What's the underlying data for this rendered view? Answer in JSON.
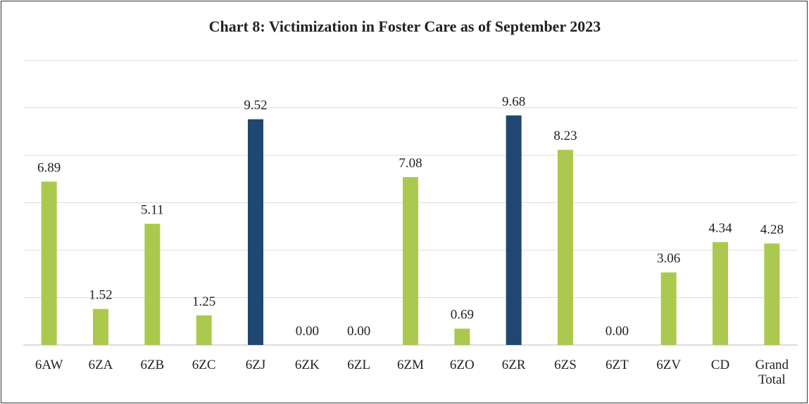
{
  "chart_data": {
    "type": "bar",
    "title": "Chart 8: Victimization in Foster Care as of September 2023",
    "categories": [
      "6AW",
      "6ZA",
      "6ZB",
      "6ZC",
      "6ZJ",
      "6ZK",
      "6ZL",
      "6ZM",
      "6ZO",
      "6ZR",
      "6ZS",
      "6ZT",
      "6ZV",
      "CD",
      "Grand Total"
    ],
    "values": [
      6.89,
      1.52,
      5.11,
      1.25,
      9.52,
      0,
      0,
      7.08,
      0.69,
      9.68,
      8.23,
      0,
      3.06,
      4.34,
      4.28
    ],
    "value_labels": [
      "6.89",
      "1.52",
      "5.11",
      "1.25",
      "9.52",
      "0.00",
      "0.00",
      "7.08",
      "0.69",
      "9.68",
      "8.23",
      "0.00",
      "3.06",
      "4.34",
      "4.28"
    ],
    "colors": [
      "#acc94f",
      "#acc94f",
      "#acc94f",
      "#acc94f",
      "#1f4770",
      "#acc94f",
      "#acc94f",
      "#acc94f",
      "#acc94f",
      "#1f4770",
      "#acc94f",
      "#acc94f",
      "#acc94f",
      "#acc94f",
      "#acc94f"
    ],
    "ylim": [
      0,
      12
    ],
    "yticks": [
      0,
      2,
      4,
      6,
      8,
      10,
      12
    ],
    "grid": true
  }
}
